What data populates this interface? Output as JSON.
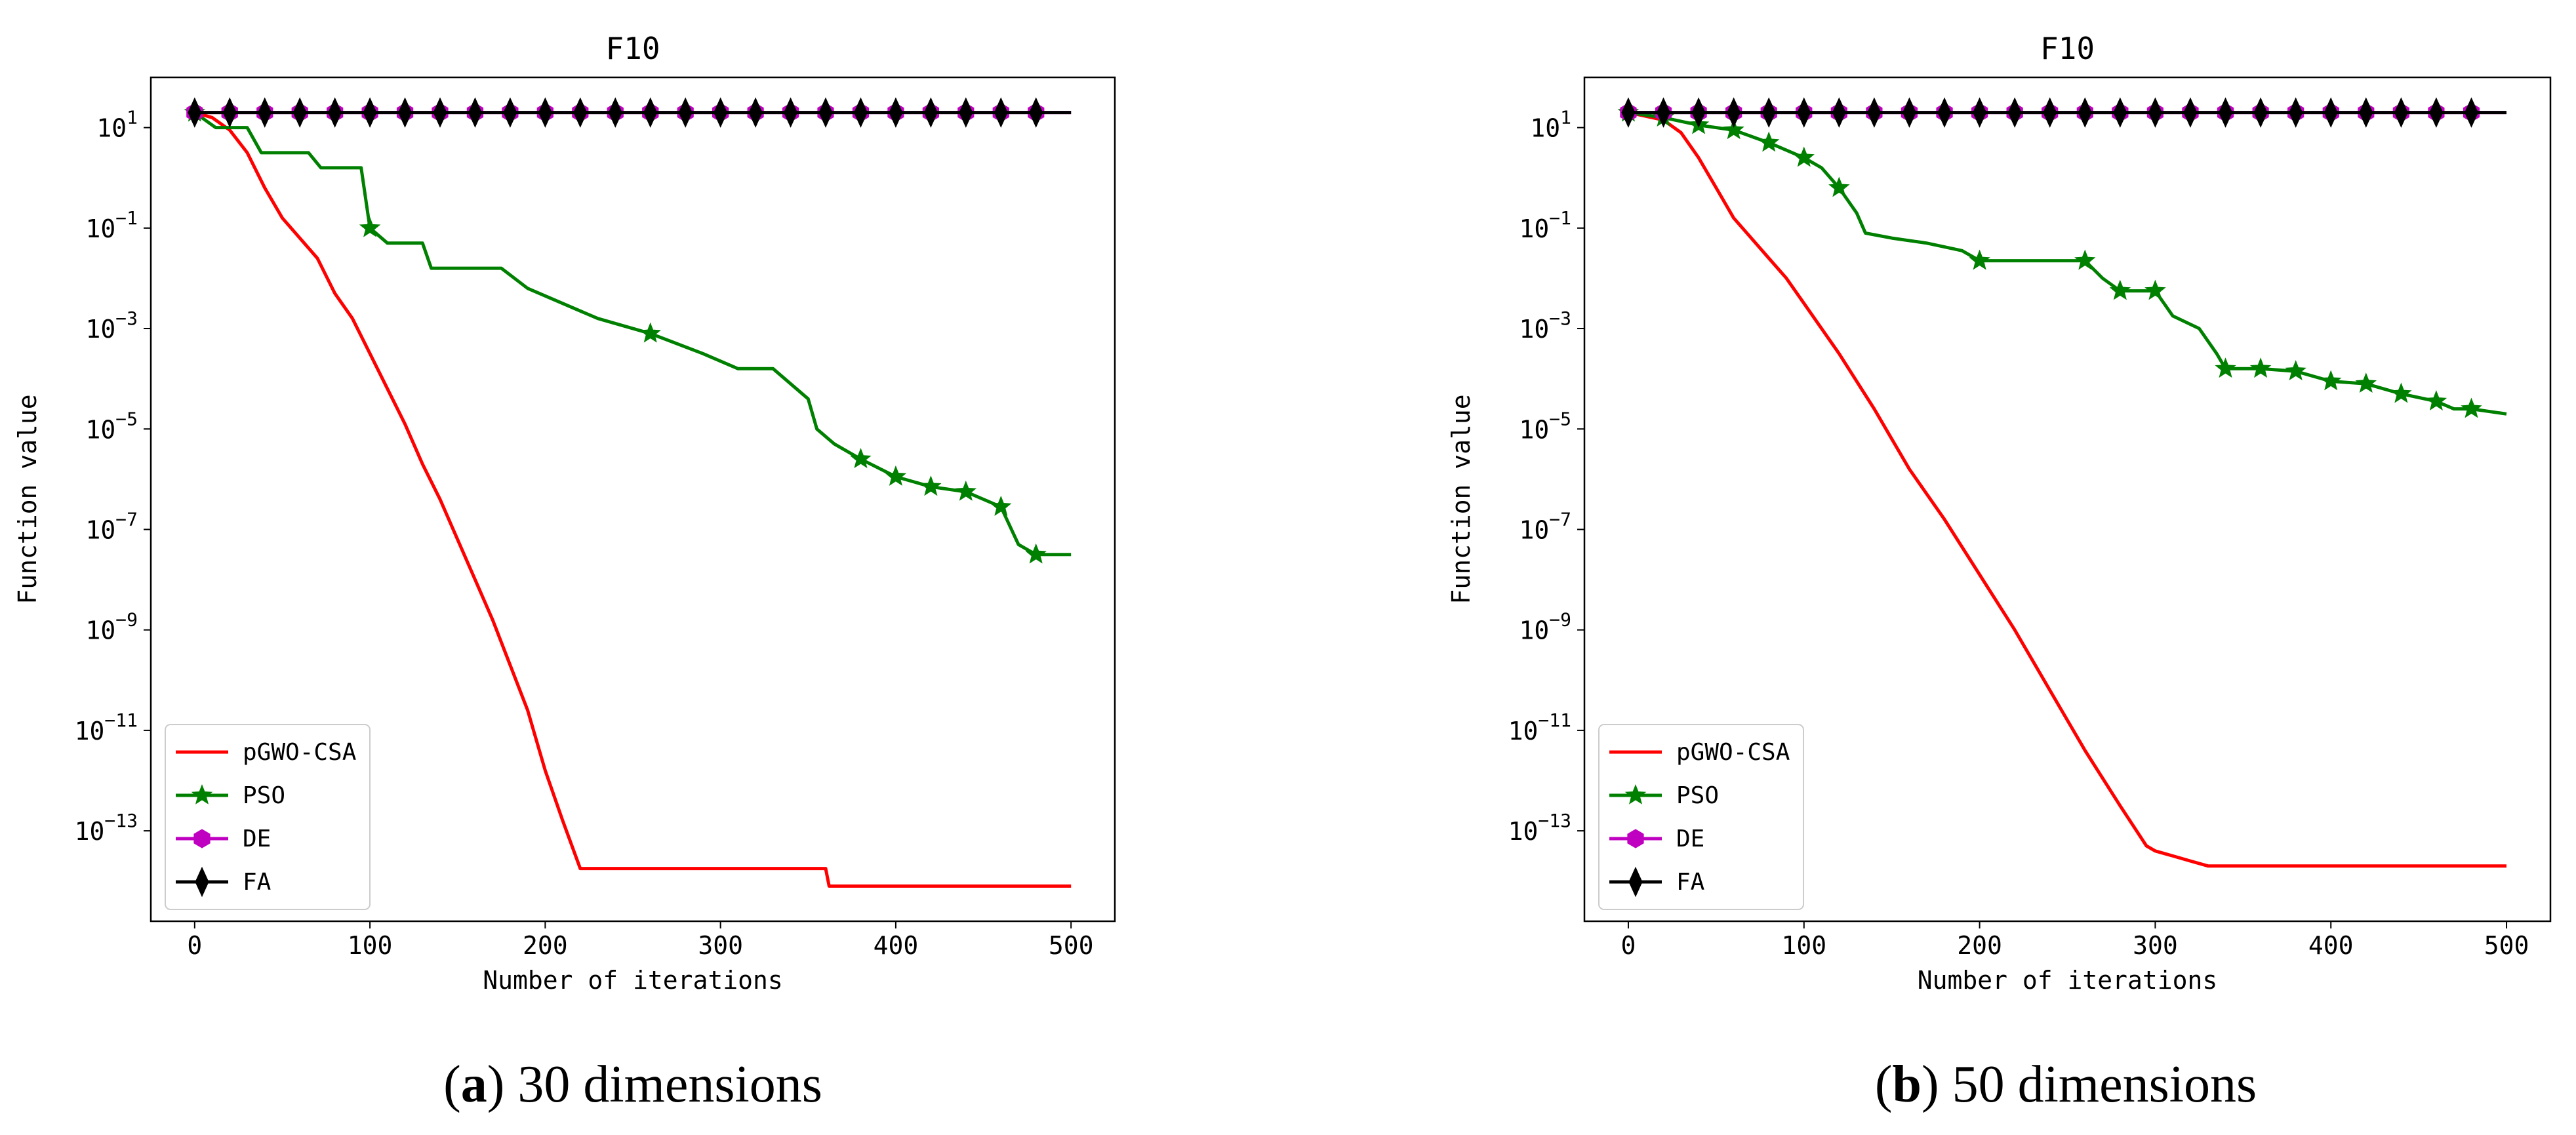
{
  "chart_data": [
    {
      "type": "line",
      "title": "F10",
      "xlabel": "Number of iterations",
      "ylabel": "Function value",
      "yscale": "log",
      "xlim": [
        -25,
        525
      ],
      "ylim_exp": [
        -14.8,
        2
      ],
      "xticks": [
        0,
        100,
        200,
        300,
        400,
        500
      ],
      "ytick_exponents": [
        1,
        -1,
        -3,
        -5,
        -7,
        -9,
        -11,
        -13
      ],
      "legend": "lower-left",
      "caption": {
        "letter": "a",
        "text": "30 dimensions"
      },
      "series": [
        {
          "name": "pGWO-CSA",
          "color": "#ff0000",
          "marker": "none",
          "log10_points": [
            [
              0,
              1.3
            ],
            [
              10,
              1.2
            ],
            [
              20,
              0.95
            ],
            [
              30,
              0.5
            ],
            [
              40,
              -0.2
            ],
            [
              50,
              -0.8
            ],
            [
              60,
              -1.2
            ],
            [
              70,
              -1.6
            ],
            [
              80,
              -2.3
            ],
            [
              90,
              -2.8
            ],
            [
              100,
              -3.5
            ],
            [
              110,
              -4.2
            ],
            [
              120,
              -4.9
            ],
            [
              130,
              -5.7
            ],
            [
              140,
              -6.4
            ],
            [
              150,
              -7.2
            ],
            [
              160,
              -8.0
            ],
            [
              170,
              -8.8
            ],
            [
              180,
              -9.7
            ],
            [
              190,
              -10.6
            ],
            [
              200,
              -11.8
            ],
            [
              210,
              -12.8
            ],
            [
              220,
              -13.75
            ],
            [
              360,
              -13.75
            ],
            [
              362,
              -14.1
            ],
            [
              500,
              -14.1
            ]
          ]
        },
        {
          "name": "PSO",
          "color": "#008000",
          "marker": "star",
          "log10_points": [
            [
              0,
              1.3
            ],
            [
              12,
              1.0
            ],
            [
              30,
              1.0
            ],
            [
              38,
              0.5
            ],
            [
              65,
              0.5
            ],
            [
              72,
              0.2
            ],
            [
              95,
              0.2
            ],
            [
              100,
              -1.0
            ],
            [
              110,
              -1.3
            ],
            [
              130,
              -1.3
            ],
            [
              135,
              -1.8
            ],
            [
              175,
              -1.8
            ],
            [
              190,
              -2.2
            ],
            [
              230,
              -2.8
            ],
            [
              260,
              -3.1
            ],
            [
              290,
              -3.5
            ],
            [
              310,
              -3.8
            ],
            [
              330,
              -3.8
            ],
            [
              350,
              -4.4
            ],
            [
              355,
              -5.0
            ],
            [
              365,
              -5.3
            ],
            [
              380,
              -5.6
            ],
            [
              400,
              -5.95
            ],
            [
              420,
              -6.15
            ],
            [
              440,
              -6.25
            ],
            [
              460,
              -6.55
            ],
            [
              470,
              -7.3
            ],
            [
              480,
              -7.5
            ],
            [
              500,
              -7.5
            ]
          ]
        },
        {
          "name": "DE",
          "color": "#c000c0",
          "marker": "hexagon",
          "constant_log10": 1.3,
          "marker_every": 20
        },
        {
          "name": "FA",
          "color": "#000000",
          "marker": "diamond",
          "constant_log10": 1.3,
          "marker_every": 20
        }
      ]
    },
    {
      "type": "line",
      "title": "F10",
      "xlabel": "Number of iterations",
      "ylabel": "Function value",
      "yscale": "log",
      "xlim": [
        -25,
        525
      ],
      "ylim_exp": [
        -14.8,
        2
      ],
      "xticks": [
        0,
        100,
        200,
        300,
        400,
        500
      ],
      "ytick_exponents": [
        1,
        -1,
        -3,
        -5,
        -7,
        -9,
        -11,
        -13
      ],
      "legend": "lower-left",
      "caption": {
        "letter": "b",
        "text": "50 dimensions"
      },
      "series": [
        {
          "name": "pGWO-CSA",
          "color": "#ff0000",
          "marker": "none",
          "log10_points": [
            [
              0,
              1.3
            ],
            [
              20,
              1.15
            ],
            [
              30,
              0.9
            ],
            [
              40,
              0.4
            ],
            [
              50,
              -0.2
            ],
            [
              60,
              -0.8
            ],
            [
              70,
              -1.2
            ],
            [
              80,
              -1.6
            ],
            [
              90,
              -2.0
            ],
            [
              100,
              -2.5
            ],
            [
              120,
              -3.5
            ],
            [
              140,
              -4.6
            ],
            [
              160,
              -5.8
            ],
            [
              180,
              -6.8
            ],
            [
              200,
              -7.9
            ],
            [
              220,
              -9.0
            ],
            [
              240,
              -10.2
            ],
            [
              260,
              -11.4
            ],
            [
              280,
              -12.5
            ],
            [
              295,
              -13.3
            ],
            [
              300,
              -13.4
            ],
            [
              310,
              -13.5
            ],
            [
              320,
              -13.6
            ],
            [
              330,
              -13.7
            ],
            [
              500,
              -13.7
            ]
          ]
        },
        {
          "name": "PSO",
          "color": "#008000",
          "marker": "star",
          "log10_points": [
            [
              0,
              1.3
            ],
            [
              20,
              1.2
            ],
            [
              40,
              1.05
            ],
            [
              60,
              0.95
            ],
            [
              80,
              0.7
            ],
            [
              100,
              0.4
            ],
            [
              110,
              0.2
            ],
            [
              120,
              -0.2
            ],
            [
              130,
              -0.7
            ],
            [
              135,
              -1.1
            ],
            [
              150,
              -1.2
            ],
            [
              170,
              -1.3
            ],
            [
              190,
              -1.45
            ],
            [
              200,
              -1.65
            ],
            [
              260,
              -1.65
            ],
            [
              270,
              -2.0
            ],
            [
              280,
              -2.25
            ],
            [
              300,
              -2.25
            ],
            [
              310,
              -2.75
            ],
            [
              325,
              -3.0
            ],
            [
              335,
              -3.5
            ],
            [
              340,
              -3.8
            ],
            [
              360,
              -3.8
            ],
            [
              380,
              -3.85
            ],
            [
              400,
              -4.05
            ],
            [
              420,
              -4.1
            ],
            [
              440,
              -4.3
            ],
            [
              460,
              -4.45
            ],
            [
              470,
              -4.6
            ],
            [
              480,
              -4.6
            ],
            [
              500,
              -4.7
            ]
          ]
        },
        {
          "name": "DE",
          "color": "#c000c0",
          "marker": "hexagon",
          "constant_log10": 1.3,
          "marker_every": 20
        },
        {
          "name": "FA",
          "color": "#000000",
          "marker": "diamond",
          "constant_log10": 1.3,
          "marker_every": 20
        }
      ]
    }
  ]
}
